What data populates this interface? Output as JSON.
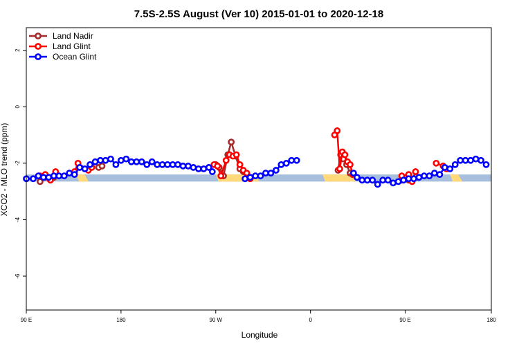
{
  "chart_data": {
    "type": "line",
    "title": "7.5S-2.5S August (Ver 10)   2015-01-01 to 2020-12-18",
    "xlabel": "Longitude",
    "ylabel": "XCO2 - MLO trend (ppm)",
    "xlim": [
      -90,
      180
    ],
    "ylim": [
      -7.2,
      2.8
    ],
    "x_ticks": [
      {
        "value": -90,
        "label": "90 E"
      },
      {
        "value": -35,
        "label": "180"
      },
      {
        "value": 20,
        "label": "90 W"
      },
      {
        "value": 75,
        "label": "0"
      },
      {
        "value": 130,
        "label": "90 E"
      },
      {
        "value": 180,
        "label": "180"
      }
    ],
    "y_ticks": [
      {
        "value": 2,
        "label": "2"
      },
      {
        "value": 0,
        "label": "0"
      },
      {
        "value": -2,
        "label": "-2"
      },
      {
        "value": -4,
        "label": "-4"
      },
      {
        "value": -6,
        "label": "-6"
      }
    ],
    "legend_position": "top-left",
    "surface_band": {
      "y_range": [
        -2.65,
        -2.4
      ],
      "ocean_color": "#a7bedd",
      "land_color": "#ffd97a",
      "land_segments": [
        [
          -61,
          -55
        ],
        [
          20,
          44
        ],
        [
          82,
          100
        ],
        [
          156,
          162
        ]
      ]
    },
    "series": [
      {
        "name": "Land Nadir",
        "color": "#a52a2a",
        "points": [
          [
            -82,
            -2.65
          ],
          [
            -79,
            -2.5
          ],
          [
            -74,
            -2.5
          ],
          [
            -48,
            -2.15
          ],
          [
            -46,
            -2.1
          ],
          [
            20,
            -2.05
          ],
          [
            22,
            -2.15
          ],
          [
            24.5,
            -2.45
          ],
          [
            27,
            -1.7
          ],
          [
            29,
            -1.25
          ],
          [
            31.5,
            -1.75
          ],
          [
            34,
            -2.2
          ],
          [
            36,
            -2.3
          ],
          [
            91,
            -2.25
          ],
          [
            92.5,
            -1.7
          ],
          [
            94,
            -1.85
          ],
          [
            96,
            -2.05
          ],
          [
            98,
            -2.35
          ],
          [
            128,
            -2.6
          ],
          [
            132,
            -2.6
          ]
        ]
      },
      {
        "name": "Land Glint",
        "color": "#ff0000",
        "points": [
          [
            -82,
            -2.45
          ],
          [
            -79,
            -2.4
          ],
          [
            -76,
            -2.6
          ],
          [
            -73,
            -2.3
          ],
          [
            -62,
            -2.3
          ],
          [
            -60,
            -2.0
          ],
          [
            -54,
            -2.25
          ],
          [
            -52,
            -2.15
          ],
          [
            19,
            -2.05
          ],
          [
            21,
            -2.1
          ],
          [
            23,
            -2.45
          ],
          [
            26,
            -1.9
          ],
          [
            28,
            -1.7
          ],
          [
            30,
            -1.75
          ],
          [
            32,
            -1.7
          ],
          [
            34,
            -2.05
          ],
          [
            36,
            -2.25
          ],
          [
            38,
            -2.35
          ],
          [
            40,
            -2.55
          ],
          [
            89,
            -1.0
          ],
          [
            90.5,
            -0.85
          ],
          [
            92,
            -2.2
          ],
          [
            93.5,
            -1.6
          ],
          [
            95,
            -1.7
          ],
          [
            96.5,
            -1.95
          ],
          [
            98,
            -2.05
          ],
          [
            99.5,
            -2.4
          ],
          [
            128,
            -2.45
          ],
          [
            132,
            -2.4
          ],
          [
            134,
            -2.65
          ],
          [
            136,
            -2.3
          ],
          [
            148,
            -2.0
          ],
          [
            152,
            -2.1
          ],
          [
            154,
            -2.2
          ]
        ]
      },
      {
        "name": "Ocean Glint",
        "color": "#0000ff",
        "points": [
          [
            -90,
            -2.55
          ],
          [
            -86,
            -2.55
          ],
          [
            -83,
            -2.45
          ],
          [
            -80,
            -2.5
          ],
          [
            -77,
            -2.5
          ],
          [
            -74,
            -2.45
          ],
          [
            -71,
            -2.45
          ],
          [
            -68,
            -2.45
          ],
          [
            -65,
            -2.35
          ],
          [
            -62,
            -2.4
          ],
          [
            -59,
            -2.15
          ],
          [
            -56,
            -2.2
          ],
          [
            -53,
            -2.05
          ],
          [
            -50,
            -1.95
          ],
          [
            -47,
            -1.9
          ],
          [
            -44,
            -1.9
          ],
          [
            -41,
            -1.85
          ],
          [
            -38,
            -2.05
          ],
          [
            -35,
            -1.9
          ],
          [
            -32,
            -1.85
          ],
          [
            -29,
            -1.95
          ],
          [
            -26,
            -1.95
          ],
          [
            -23,
            -1.95
          ],
          [
            -20,
            -2.05
          ],
          [
            -17,
            -1.95
          ],
          [
            -14,
            -2.05
          ],
          [
            -11,
            -2.05
          ],
          [
            -8,
            -2.05
          ],
          [
            -5,
            -2.05
          ],
          [
            -2,
            -2.05
          ],
          [
            1,
            -2.1
          ],
          [
            4,
            -2.1
          ],
          [
            7,
            -2.15
          ],
          [
            10,
            -2.2
          ],
          [
            13,
            -2.2
          ],
          [
            16,
            -2.15
          ],
          [
            18,
            -2.3
          ],
          [
            37,
            -2.55
          ],
          [
            40,
            -2.5
          ],
          [
            43,
            -2.45
          ],
          [
            46,
            -2.45
          ],
          [
            49,
            -2.35
          ],
          [
            52,
            -2.35
          ],
          [
            55,
            -2.25
          ],
          [
            58,
            -2.05
          ],
          [
            61,
            -2.0
          ],
          [
            64,
            -1.9
          ],
          [
            67,
            -1.9
          ],
          [
            100,
            -2.35
          ],
          [
            102,
            -2.5
          ],
          [
            105,
            -2.6
          ],
          [
            108,
            -2.6
          ],
          [
            111,
            -2.6
          ],
          [
            114,
            -2.75
          ],
          [
            117,
            -2.6
          ],
          [
            120,
            -2.6
          ],
          [
            123,
            -2.7
          ],
          [
            126,
            -2.65
          ],
          [
            129,
            -2.6
          ],
          [
            132,
            -2.55
          ],
          [
            135,
            -2.55
          ],
          [
            138,
            -2.5
          ],
          [
            141,
            -2.45
          ],
          [
            144,
            -2.45
          ],
          [
            147,
            -2.35
          ],
          [
            150,
            -2.4
          ],
          [
            153,
            -2.15
          ],
          [
            156,
            -2.2
          ],
          [
            159,
            -2.05
          ],
          [
            162,
            -1.9
          ],
          [
            165,
            -1.9
          ],
          [
            168,
            -1.9
          ],
          [
            171,
            -1.85
          ],
          [
            174,
            -1.9
          ],
          [
            177,
            -2.05
          ]
        ]
      }
    ]
  }
}
